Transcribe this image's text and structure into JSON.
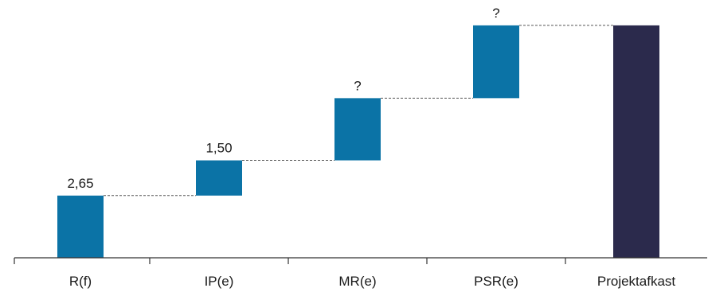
{
  "chart_data": {
    "type": "bar",
    "subtype": "waterfall",
    "title": "",
    "xlabel": "",
    "ylabel": "",
    "categories": [
      "R(f)",
      "IP(e)",
      "MR(e)",
      "PSR(e)",
      "Projektafkast"
    ],
    "steps": [
      {
        "category": "R(f)",
        "base": 0,
        "value": 2.65,
        "label": "2,65",
        "kind": "increment"
      },
      {
        "category": "IP(e)",
        "base": 2.65,
        "value": 1.5,
        "label": "1,50",
        "kind": "increment"
      },
      {
        "category": "MR(e)",
        "base": 4.15,
        "value": 2.65,
        "label": "?",
        "kind": "increment"
      },
      {
        "category": "PSR(e)",
        "base": 6.8,
        "value": 3.1,
        "label": "?",
        "kind": "increment"
      },
      {
        "category": "Projektafkast",
        "base": 0,
        "value": 9.9,
        "label": "",
        "kind": "total"
      }
    ],
    "ylim": [
      0,
      10.1
    ],
    "grid": false,
    "legend": "none",
    "connectors": "dashed",
    "colors": {
      "increment": "#0B73A6",
      "total": "#2B2A4C",
      "connector": "#555555",
      "axis": "#333333"
    }
  }
}
